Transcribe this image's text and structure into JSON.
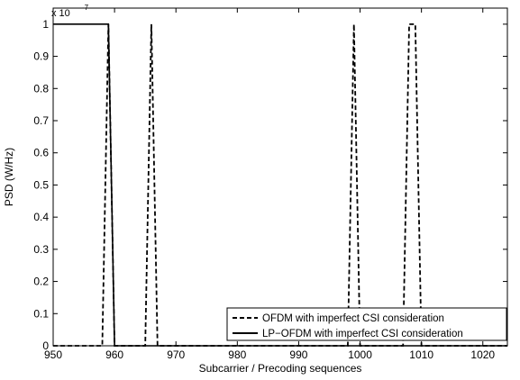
{
  "chart_data": {
    "type": "line",
    "title": "",
    "xlabel": "Subcarrier / Precoding sequences",
    "ylabel": "PSD (W/Hz)",
    "y_multiplier": "x 10",
    "y_multiplier_exponent": "-7",
    "xlim": [
      950,
      1024
    ],
    "ylim": [
      0,
      1.05
    ],
    "xticks": [
      950,
      960,
      970,
      980,
      990,
      1000,
      1010,
      1020
    ],
    "yticks": [
      0,
      0.1,
      0.2,
      0.3,
      0.4,
      0.5,
      0.6,
      0.7,
      0.8,
      0.9,
      1
    ],
    "ytick_labels": [
      "0",
      "0.1",
      "0.2",
      "0.3",
      "0.4",
      "0.5",
      "0.6",
      "0.7",
      "0.8",
      "0.9",
      "1"
    ],
    "grid": false,
    "legend_position": "bottom-right",
    "series": [
      {
        "name": "OFDM with imperfect CSI consideration",
        "style": "dashed",
        "color": "#000000",
        "x": [
          950,
          958,
          959,
          960,
          965,
          966,
          967,
          998,
          999,
          1000,
          1007,
          1008,
          1009,
          1010,
          1024
        ],
        "y": [
          0,
          0,
          1,
          0,
          0,
          1,
          0,
          0,
          1,
          0,
          0,
          1,
          1,
          0,
          0
        ]
      },
      {
        "name": "LP−OFDM with imperfect CSI consideration",
        "style": "solid",
        "color": "#000000",
        "x": [
          950,
          958,
          959,
          960,
          1024
        ],
        "y": [
          1,
          1,
          1,
          0,
          0
        ]
      }
    ]
  }
}
